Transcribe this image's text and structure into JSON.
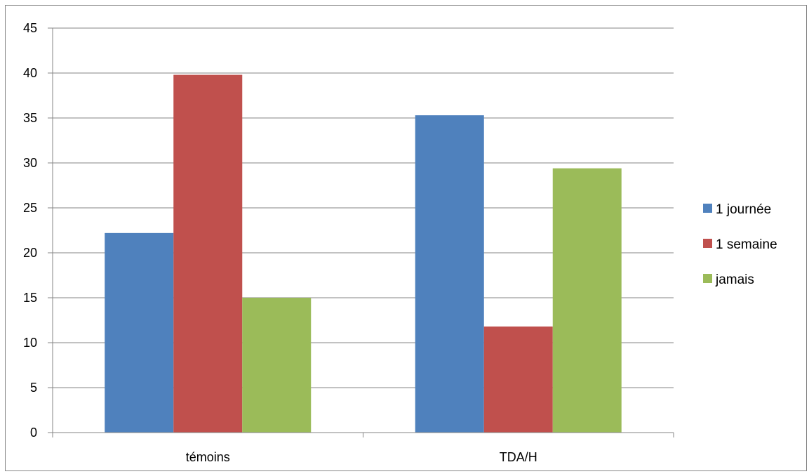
{
  "chart_data": {
    "type": "bar",
    "categories": [
      "témoins",
      "TDA/H"
    ],
    "series": [
      {
        "name": "1 journée",
        "values": [
          22.2,
          35.3
        ],
        "color": "#4F81BD"
      },
      {
        "name": "1 semaine",
        "values": [
          39.8,
          11.8
        ],
        "color": "#C0504D"
      },
      {
        "name": "jamais",
        "values": [
          15.0,
          29.4
        ],
        "color": "#9BBB59"
      }
    ],
    "ylim": [
      0,
      45
    ],
    "yticks": [
      0,
      5,
      10,
      15,
      20,
      25,
      30,
      35,
      40,
      45
    ],
    "grid": "horizontal",
    "legend_position": "right",
    "gridline_color": "#868686"
  }
}
